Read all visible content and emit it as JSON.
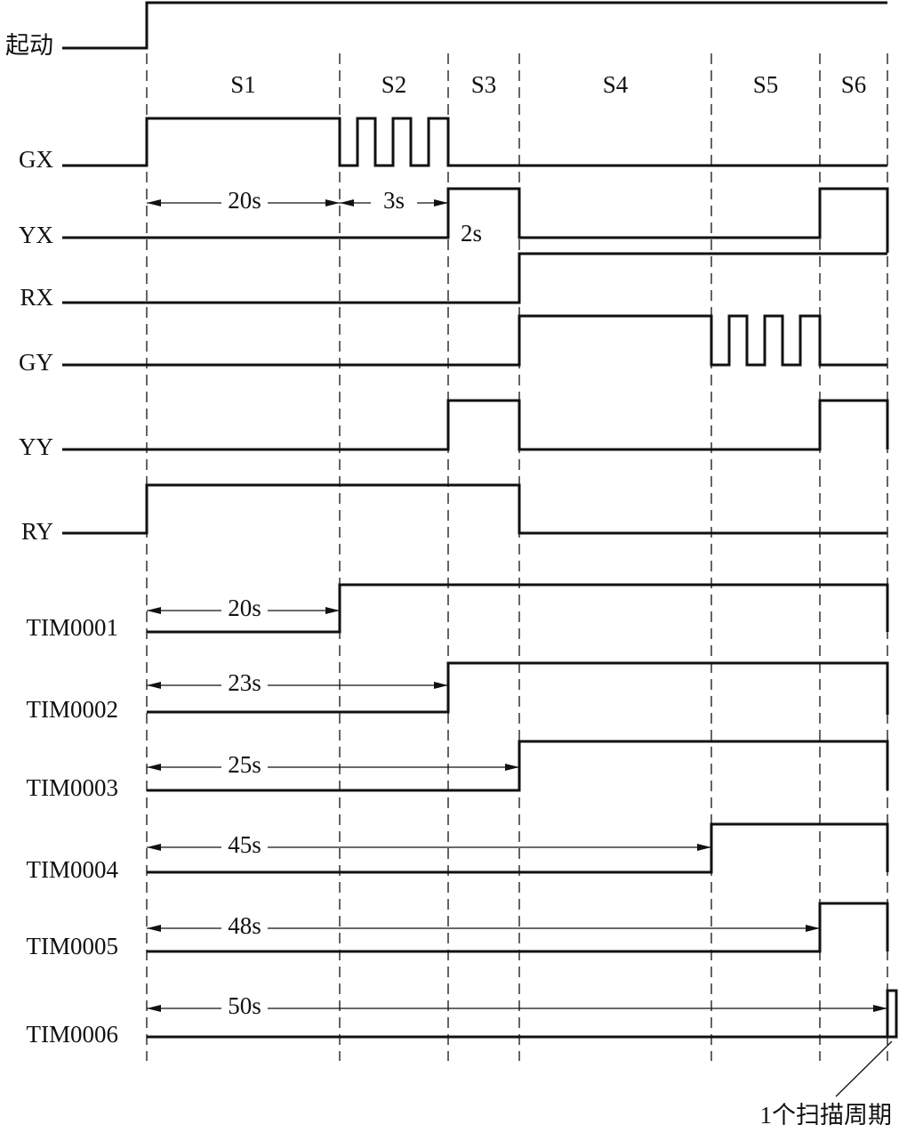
{
  "signals": [
    "起动",
    "GX",
    "YX",
    "RX",
    "GY",
    "YY",
    "RY",
    "TIM0001",
    "TIM0002",
    "TIM0003",
    "TIM0004",
    "TIM0005",
    "TIM0006"
  ],
  "stages": [
    "S1",
    "S2",
    "S3",
    "S4",
    "S5",
    "S6"
  ],
  "durations": {
    "gx_green": "20s",
    "gx_flash": "3s",
    "yx_yellow": "2s"
  },
  "timers": [
    "20s",
    "23s",
    "25s",
    "45s",
    "48s",
    "50s"
  ],
  "note": "1个扫描周期"
}
